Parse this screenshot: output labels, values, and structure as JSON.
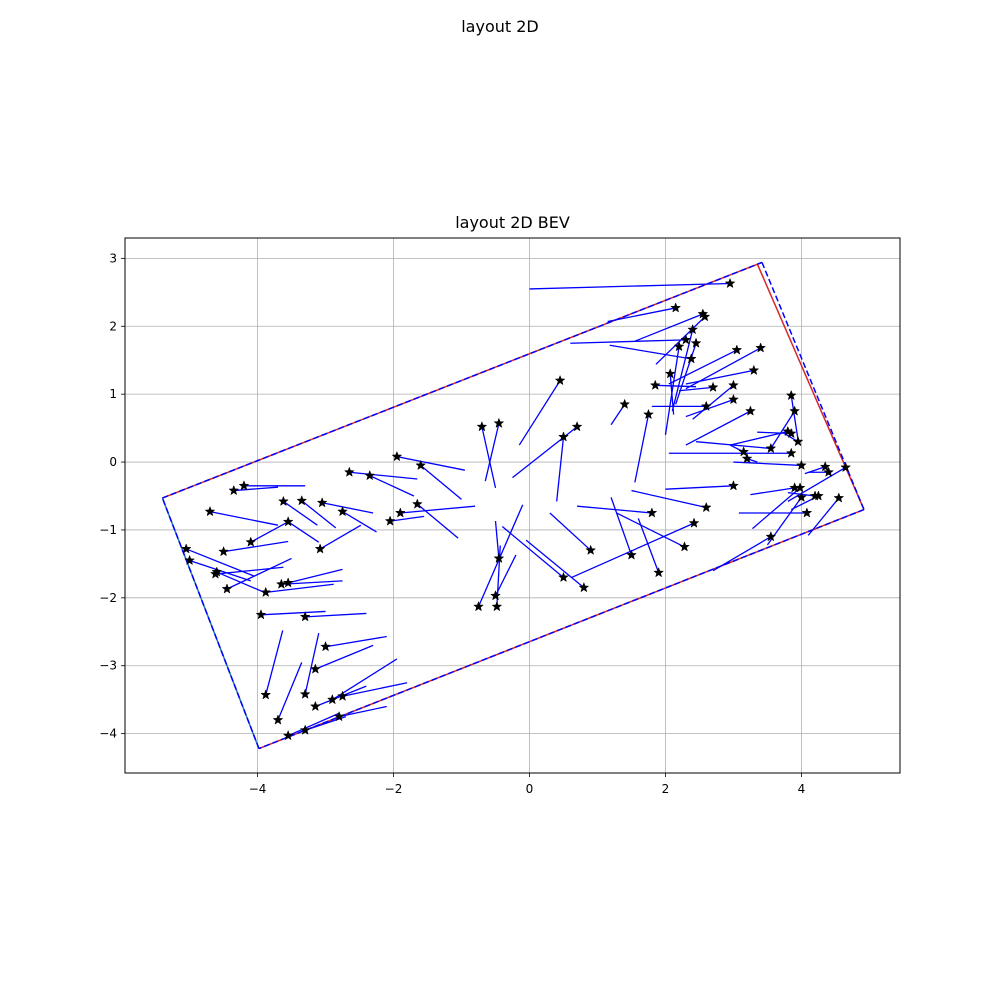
{
  "figure": {
    "suptitle": "layout 2D"
  },
  "chart_data": {
    "type": "scatter",
    "title": "layout 2D BEV",
    "xlabel": "",
    "ylabel": "",
    "xlim": [
      -5.95,
      5.45
    ],
    "ylim": [
      -4.58,
      3.3
    ],
    "xticks": [
      -4,
      -2,
      0,
      2,
      4
    ],
    "yticks": [
      -4,
      -3,
      -2,
      -1,
      0,
      1,
      2,
      3
    ],
    "grid": true,
    "colors": {
      "layout_solid": "#d62728",
      "layout_solid_alt": "#1f77b4",
      "layout_dashed": "#0000ff",
      "arrows": "#0000ff",
      "markers": "#000000"
    },
    "layout_box": {
      "corners": [
        [
          -5.4,
          -0.53
        ],
        [
          3.42,
          2.94
        ],
        [
          4.92,
          -0.7
        ],
        [
          -3.98,
          -4.22
        ]
      ],
      "solid_edges": [
        {
          "from": [
            -5.4,
            -0.53
          ],
          "to": [
            3.42,
            2.94
          ],
          "color": "#d62728"
        },
        {
          "from": [
            3.35,
            2.92
          ],
          "to": [
            4.92,
            -0.7
          ],
          "color": "#d62728"
        },
        {
          "from": [
            4.92,
            -0.7
          ],
          "to": [
            -3.98,
            -4.22
          ],
          "color": "#d62728"
        },
        {
          "from": [
            -5.4,
            -0.53
          ],
          "to": [
            -3.98,
            -4.22
          ],
          "color": "#1f77b4"
        }
      ]
    },
    "objects": [
      {
        "x": 2.95,
        "y": 2.63,
        "dx": -2.95,
        "dy": -0.08
      },
      {
        "x": 2.15,
        "y": 2.27,
        "dx": -1.0,
        "dy": -0.2
      },
      {
        "x": 2.55,
        "y": 2.18,
        "dx": -1.0,
        "dy": -0.4
      },
      {
        "x": 2.58,
        "y": 2.14,
        "dx": -0.72,
        "dy": -0.7
      },
      {
        "x": 2.4,
        "y": 1.95,
        "dx": -0.3,
        "dy": -1.2
      },
      {
        "x": 2.3,
        "y": 1.8,
        "dx": -1.7,
        "dy": -0.05
      },
      {
        "x": 2.45,
        "y": 1.75,
        "dx": -0.3,
        "dy": -0.9
      },
      {
        "x": 2.2,
        "y": 1.7,
        "dx": -0.2,
        "dy": -1.3
      },
      {
        "x": 3.05,
        "y": 1.65,
        "dx": -1.0,
        "dy": -0.5
      },
      {
        "x": 3.4,
        "y": 1.68,
        "dx": -1.1,
        "dy": -0.6
      },
      {
        "x": 2.38,
        "y": 1.52,
        "dx": -1.2,
        "dy": 0.2
      },
      {
        "x": 3.3,
        "y": 1.35,
        "dx": -1.0,
        "dy": -0.2
      },
      {
        "x": 2.07,
        "y": 1.3,
        "dx": 0.05,
        "dy": -0.6
      },
      {
        "x": 1.85,
        "y": 1.13,
        "dx": 0.6,
        "dy": -0.02
      },
      {
        "x": 2.7,
        "y": 1.1,
        "dx": -0.5,
        "dy": -0.05
      },
      {
        "x": 3.0,
        "y": 1.13,
        "dx": -0.6,
        "dy": -0.5
      },
      {
        "x": 3.0,
        "y": 0.92,
        "dx": -0.7,
        "dy": -0.25
      },
      {
        "x": 3.85,
        "y": 0.98,
        "dx": 0.1,
        "dy": -0.65
      },
      {
        "x": 2.6,
        "y": 0.82,
        "dx": -0.8,
        "dy": 0.0
      },
      {
        "x": 3.25,
        "y": 0.75,
        "dx": -0.95,
        "dy": -0.5
      },
      {
        "x": 3.9,
        "y": 0.75,
        "dx": -0.35,
        "dy": -0.55
      },
      {
        "x": 1.4,
        "y": 0.85,
        "dx": -0.2,
        "dy": -0.3
      },
      {
        "x": 1.75,
        "y": 0.7,
        "dx": -0.2,
        "dy": -1.0
      },
      {
        "x": 3.8,
        "y": 0.45,
        "dx": -0.85,
        "dy": -0.2
      },
      {
        "x": 3.85,
        "y": 0.42,
        "dx": -0.5,
        "dy": 0.02
      },
      {
        "x": 3.95,
        "y": 0.3,
        "dx": -0.2,
        "dy": 0.12
      },
      {
        "x": 3.55,
        "y": 0.2,
        "dx": -1.1,
        "dy": 0.1
      },
      {
        "x": 3.85,
        "y": 0.13,
        "dx": -1.8,
        "dy": 0.0
      },
      {
        "x": 3.15,
        "y": 0.15,
        "dx": -0.2,
        "dy": 0.1
      },
      {
        "x": 3.2,
        "y": 0.05,
        "dx": 0.15,
        "dy": -0.05
      },
      {
        "x": 3.9,
        "y": -0.38,
        "dx": -0.65,
        "dy": -0.1
      },
      {
        "x": 4.0,
        "y": -0.05,
        "dx": -1.0,
        "dy": 0.05
      },
      {
        "x": 4.35,
        "y": -0.07,
        "dx": -0.3,
        "dy": -0.1
      },
      {
        "x": 4.4,
        "y": -0.15,
        "dx": -0.3,
        "dy": 0.0
      },
      {
        "x": 4.65,
        "y": -0.08,
        "dx": -0.85,
        "dy": -0.5
      },
      {
        "x": 3.0,
        "y": -0.35,
        "dx": -1.0,
        "dy": -0.05
      },
      {
        "x": 3.98,
        "y": -0.38,
        "dx": -0.7,
        "dy": -0.6
      },
      {
        "x": 4.25,
        "y": -0.5,
        "dx": -0.4,
        "dy": -0.2
      },
      {
        "x": 4.2,
        "y": -0.5,
        "dx": -0.4,
        "dy": 0.05
      },
      {
        "x": 4.0,
        "y": -0.52,
        "dx": -0.5,
        "dy": -0.7
      },
      {
        "x": 4.55,
        "y": -0.53,
        "dx": -0.45,
        "dy": -0.55
      },
      {
        "x": 4.08,
        "y": -0.75,
        "dx": -1.0,
        "dy": 0.0
      },
      {
        "x": 2.6,
        "y": -0.67,
        "dx": -1.1,
        "dy": 0.25
      },
      {
        "x": 2.42,
        "y": -0.9,
        "dx": -1.8,
        "dy": -0.8
      },
      {
        "x": 1.8,
        "y": -0.75,
        "dx": -1.1,
        "dy": 0.1
      },
      {
        "x": 2.28,
        "y": -1.25,
        "dx": -1.0,
        "dy": 0.5
      },
      {
        "x": 1.9,
        "y": -1.63,
        "dx": -0.3,
        "dy": 0.8
      },
      {
        "x": 1.5,
        "y": -1.37,
        "dx": -0.3,
        "dy": 0.85
      },
      {
        "x": 3.55,
        "y": -1.1,
        "dx": -0.85,
        "dy": -0.5
      },
      {
        "x": 0.9,
        "y": -1.3,
        "dx": -0.6,
        "dy": 0.55
      },
      {
        "x": 0.8,
        "y": -1.85,
        "dx": -0.85,
        "dy": 0.7
      },
      {
        "x": 0.5,
        "y": -1.7,
        "dx": -0.9,
        "dy": 0.75
      },
      {
        "x": 0.45,
        "y": 1.2,
        "dx": -0.6,
        "dy": -0.95
      },
      {
        "x": 0.7,
        "y": 0.52,
        "dx": -0.95,
        "dy": -0.75
      },
      {
        "x": 0.5,
        "y": 0.37,
        "dx": -0.1,
        "dy": -0.95
      },
      {
        "x": -0.7,
        "y": 0.52,
        "dx": 0.2,
        "dy": -0.9
      },
      {
        "x": -0.45,
        "y": 0.57,
        "dx": -0.2,
        "dy": -0.85
      },
      {
        "x": -0.75,
        "y": -2.13,
        "dx": 0.65,
        "dy": 1.5
      },
      {
        "x": -0.48,
        "y": -2.13,
        "dx": 0.05,
        "dy": 0.9
      },
      {
        "x": -0.5,
        "y": -1.97,
        "dx": 0.3,
        "dy": 0.6
      },
      {
        "x": -0.45,
        "y": -1.42,
        "dx": -0.05,
        "dy": 0.55
      },
      {
        "x": -1.95,
        "y": 0.08,
        "dx": 1.0,
        "dy": -0.2
      },
      {
        "x": -1.6,
        "y": -0.05,
        "dx": 0.6,
        "dy": -0.5
      },
      {
        "x": -1.65,
        "y": -0.62,
        "dx": 0.6,
        "dy": -0.5
      },
      {
        "x": -1.9,
        "y": -0.75,
        "dx": 1.1,
        "dy": 0.1
      },
      {
        "x": -2.65,
        "y": -0.15,
        "dx": 1.0,
        "dy": -0.1
      },
      {
        "x": -2.35,
        "y": -0.2,
        "dx": 0.65,
        "dy": -0.3
      },
      {
        "x": -2.05,
        "y": -0.87,
        "dx": 0.5,
        "dy": 0.07
      },
      {
        "x": -2.75,
        "y": -0.73,
        "dx": 0.5,
        "dy": -0.3
      },
      {
        "x": -3.05,
        "y": -0.6,
        "dx": 0.75,
        "dy": -0.15
      },
      {
        "x": -3.35,
        "y": -0.57,
        "dx": 0.5,
        "dy": -0.4
      },
      {
        "x": -3.62,
        "y": -0.58,
        "dx": 0.5,
        "dy": -0.35
      },
      {
        "x": -3.55,
        "y": -0.88,
        "dx": 0.45,
        "dy": -0.3
      },
      {
        "x": -3.08,
        "y": -1.28,
        "dx": 0.6,
        "dy": 0.35
      },
      {
        "x": -4.35,
        "y": -0.42,
        "dx": 0.65,
        "dy": 0.05
      },
      {
        "x": -4.2,
        "y": -0.35,
        "dx": 0.9,
        "dy": 0.0
      },
      {
        "x": -4.7,
        "y": -0.73,
        "dx": 1.0,
        "dy": -0.2
      },
      {
        "x": -4.1,
        "y": -1.18,
        "dx": 0.55,
        "dy": 0.3
      },
      {
        "x": -4.5,
        "y": -1.32,
        "dx": 0.95,
        "dy": 0.15
      },
      {
        "x": -5.05,
        "y": -1.28,
        "dx": 1.0,
        "dy": -0.4
      },
      {
        "x": -5.0,
        "y": -1.45,
        "dx": 0.9,
        "dy": -0.3
      },
      {
        "x": -4.6,
        "y": -1.62,
        "dx": 0.7,
        "dy": -0.3
      },
      {
        "x": -4.62,
        "y": -1.65,
        "dx": 1.0,
        "dy": 0.1
      },
      {
        "x": -4.45,
        "y": -1.87,
        "dx": 0.95,
        "dy": 0.45
      },
      {
        "x": -3.65,
        "y": -1.8,
        "dx": 0.9,
        "dy": 0.05
      },
      {
        "x": -3.55,
        "y": -1.78,
        "dx": 0.8,
        "dy": 0.2
      },
      {
        "x": -3.88,
        "y": -1.92,
        "dx": 1.0,
        "dy": 0.12
      },
      {
        "x": -3.95,
        "y": -2.25,
        "dx": 0.95,
        "dy": 0.05
      },
      {
        "x": -3.3,
        "y": -2.28,
        "dx": 0.9,
        "dy": 0.05
      },
      {
        "x": -3.88,
        "y": -3.43,
        "dx": 0.25,
        "dy": 0.95
      },
      {
        "x": -3.7,
        "y": -3.8,
        "dx": 0.35,
        "dy": 0.85
      },
      {
        "x": -3.3,
        "y": -3.42,
        "dx": 0.2,
        "dy": 0.9
      },
      {
        "x": -3.0,
        "y": -2.72,
        "dx": 0.9,
        "dy": 0.15
      },
      {
        "x": -3.15,
        "y": -3.05,
        "dx": 0.85,
        "dy": 0.35
      },
      {
        "x": -3.15,
        "y": -3.6,
        "dx": 0.75,
        "dy": 0.3
      },
      {
        "x": -2.9,
        "y": -3.5,
        "dx": 0.95,
        "dy": 0.6
      },
      {
        "x": -2.75,
        "y": -3.45,
        "dx": 0.95,
        "dy": 0.2
      },
      {
        "x": -3.55,
        "y": -4.03,
        "dx": 0.75,
        "dy": 0.33
      },
      {
        "x": -3.3,
        "y": -3.95,
        "dx": 0.6,
        "dy": 0.2
      },
      {
        "x": -2.8,
        "y": -3.75,
        "dx": 0.7,
        "dy": 0.15
      }
    ]
  }
}
